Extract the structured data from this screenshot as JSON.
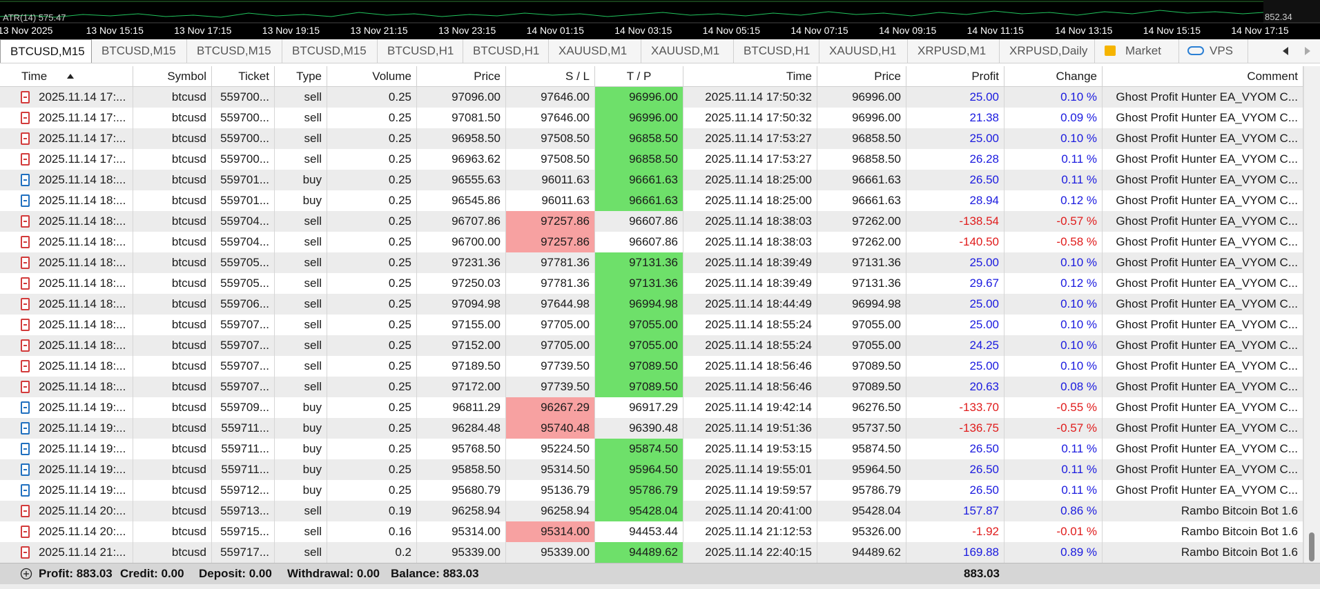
{
  "chart_strip": {
    "indicator": "ATR(14) 575.47",
    "right_value": "852.34",
    "time_labels": [
      "13 Nov 2025",
      "13 Nov 15:15",
      "13 Nov 17:15",
      "13 Nov 19:15",
      "13 Nov 21:15",
      "13 Nov 23:15",
      "14 Nov 01:15",
      "14 Nov 03:15",
      "14 Nov 05:15",
      "14 Nov 07:15",
      "14 Nov 09:15",
      "14 Nov 11:15",
      "14 Nov 13:15",
      "14 Nov 15:15",
      "14 Nov 17:15"
    ]
  },
  "tabs": [
    "BTCUSD,M15",
    "BTCUSD,M15",
    "BTCUSD,M15",
    "BTCUSD,M15",
    "BTCUSD,H1",
    "BTCUSD,H1",
    "XAUUSD,M1",
    "XAUUSD,M1",
    "BTCUSD,H1",
    "XAUUSD,H1",
    "XRPUSD,M1",
    "XRPUSD,Daily",
    "Market",
    "VPS"
  ],
  "table": {
    "columns": [
      "Time",
      "Symbol",
      "Ticket",
      "Type",
      "Volume",
      "Price",
      "S / L",
      "T / P",
      "Time",
      "Price",
      "Profit",
      "Change",
      "Comment"
    ],
    "rows": [
      [
        "2025.11.14 17:...",
        "btcusd",
        "559700...",
        "sell",
        "0.25",
        "97096.00",
        "97646.00",
        "96996.00",
        "2025.11.14 17:50:32",
        "96996.00",
        "25.00",
        "0.10 %",
        "Ghost Profit Hunter EA_VYOM C..."
      ],
      [
        "2025.11.14 17:...",
        "btcusd",
        "559700...",
        "sell",
        "0.25",
        "97081.50",
        "97646.00",
        "96996.00",
        "2025.11.14 17:50:32",
        "96996.00",
        "21.38",
        "0.09 %",
        "Ghost Profit Hunter EA_VYOM C..."
      ],
      [
        "2025.11.14 17:...",
        "btcusd",
        "559700...",
        "sell",
        "0.25",
        "96958.50",
        "97508.50",
        "96858.50",
        "2025.11.14 17:53:27",
        "96858.50",
        "25.00",
        "0.10 %",
        "Ghost Profit Hunter EA_VYOM C..."
      ],
      [
        "2025.11.14 17:...",
        "btcusd",
        "559700...",
        "sell",
        "0.25",
        "96963.62",
        "97508.50",
        "96858.50",
        "2025.11.14 17:53:27",
        "96858.50",
        "26.28",
        "0.11 %",
        "Ghost Profit Hunter EA_VYOM C..."
      ],
      [
        "2025.11.14 18:...",
        "btcusd",
        "559701...",
        "buy",
        "0.25",
        "96555.63",
        "96011.63",
        "96661.63",
        "2025.11.14 18:25:00",
        "96661.63",
        "26.50",
        "0.11 %",
        "Ghost Profit Hunter EA_VYOM C..."
      ],
      [
        "2025.11.14 18:...",
        "btcusd",
        "559701...",
        "buy",
        "0.25",
        "96545.86",
        "96011.63",
        "96661.63",
        "2025.11.14 18:25:00",
        "96661.63",
        "28.94",
        "0.12 %",
        "Ghost Profit Hunter EA_VYOM C..."
      ],
      [
        "2025.11.14 18:...",
        "btcusd",
        "559704...",
        "sell",
        "0.25",
        "96707.86",
        "97257.86",
        "96607.86",
        "2025.11.14 18:38:03",
        "97262.00",
        "-138.54",
        "-0.57 %",
        "Ghost Profit Hunter EA_VYOM C..."
      ],
      [
        "2025.11.14 18:...",
        "btcusd",
        "559704...",
        "sell",
        "0.25",
        "96700.00",
        "97257.86",
        "96607.86",
        "2025.11.14 18:38:03",
        "97262.00",
        "-140.50",
        "-0.58 %",
        "Ghost Profit Hunter EA_VYOM C..."
      ],
      [
        "2025.11.14 18:...",
        "btcusd",
        "559705...",
        "sell",
        "0.25",
        "97231.36",
        "97781.36",
        "97131.36",
        "2025.11.14 18:39:49",
        "97131.36",
        "25.00",
        "0.10 %",
        "Ghost Profit Hunter EA_VYOM C..."
      ],
      [
        "2025.11.14 18:...",
        "btcusd",
        "559705...",
        "sell",
        "0.25",
        "97250.03",
        "97781.36",
        "97131.36",
        "2025.11.14 18:39:49",
        "97131.36",
        "29.67",
        "0.12 %",
        "Ghost Profit Hunter EA_VYOM C..."
      ],
      [
        "2025.11.14 18:...",
        "btcusd",
        "559706...",
        "sell",
        "0.25",
        "97094.98",
        "97644.98",
        "96994.98",
        "2025.11.14 18:44:49",
        "96994.98",
        "25.00",
        "0.10 %",
        "Ghost Profit Hunter EA_VYOM C..."
      ],
      [
        "2025.11.14 18:...",
        "btcusd",
        "559707...",
        "sell",
        "0.25",
        "97155.00",
        "97705.00",
        "97055.00",
        "2025.11.14 18:55:24",
        "97055.00",
        "25.00",
        "0.10 %",
        "Ghost Profit Hunter EA_VYOM C..."
      ],
      [
        "2025.11.14 18:...",
        "btcusd",
        "559707...",
        "sell",
        "0.25",
        "97152.00",
        "97705.00",
        "97055.00",
        "2025.11.14 18:55:24",
        "97055.00",
        "24.25",
        "0.10 %",
        "Ghost Profit Hunter EA_VYOM C..."
      ],
      [
        "2025.11.14 18:...",
        "btcusd",
        "559707...",
        "sell",
        "0.25",
        "97189.50",
        "97739.50",
        "97089.50",
        "2025.11.14 18:56:46",
        "97089.50",
        "25.00",
        "0.10 %",
        "Ghost Profit Hunter EA_VYOM C..."
      ],
      [
        "2025.11.14 18:...",
        "btcusd",
        "559707...",
        "sell",
        "0.25",
        "97172.00",
        "97739.50",
        "97089.50",
        "2025.11.14 18:56:46",
        "97089.50",
        "20.63",
        "0.08 %",
        "Ghost Profit Hunter EA_VYOM C..."
      ],
      [
        "2025.11.14 19:...",
        "btcusd",
        "559709...",
        "buy",
        "0.25",
        "96811.29",
        "96267.29",
        "96917.29",
        "2025.11.14 19:42:14",
        "96276.50",
        "-133.70",
        "-0.55 %",
        "Ghost Profit Hunter EA_VYOM C..."
      ],
      [
        "2025.11.14 19:...",
        "btcusd",
        "559711...",
        "buy",
        "0.25",
        "96284.48",
        "95740.48",
        "96390.48",
        "2025.11.14 19:51:36",
        "95737.50",
        "-136.75",
        "-0.57 %",
        "Ghost Profit Hunter EA_VYOM C..."
      ],
      [
        "2025.11.14 19:...",
        "btcusd",
        "559711...",
        "buy",
        "0.25",
        "95768.50",
        "95224.50",
        "95874.50",
        "2025.11.14 19:53:15",
        "95874.50",
        "26.50",
        "0.11 %",
        "Ghost Profit Hunter EA_VYOM C..."
      ],
      [
        "2025.11.14 19:...",
        "btcusd",
        "559711...",
        "buy",
        "0.25",
        "95858.50",
        "95314.50",
        "95964.50",
        "2025.11.14 19:55:01",
        "95964.50",
        "26.50",
        "0.11 %",
        "Ghost Profit Hunter EA_VYOM C..."
      ],
      [
        "2025.11.14 19:...",
        "btcusd",
        "559712...",
        "buy",
        "0.25",
        "95680.79",
        "95136.79",
        "95786.79",
        "2025.11.14 19:59:57",
        "95786.79",
        "26.50",
        "0.11 %",
        "Ghost Profit Hunter EA_VYOM C..."
      ],
      [
        "2025.11.14 20:...",
        "btcusd",
        "559713...",
        "sell",
        "0.19",
        "96258.94",
        "96258.94",
        "95428.04",
        "2025.11.14 20:41:00",
        "95428.04",
        "157.87",
        "0.86 %",
        "Rambo Bitcoin Bot 1.6"
      ],
      [
        "2025.11.14 20:...",
        "btcusd",
        "559715...",
        "sell",
        "0.16",
        "95314.00",
        "95314.00",
        "94453.44",
        "2025.11.14 21:12:53",
        "95326.00",
        "-1.92",
        "-0.01 %",
        "Rambo Bitcoin Bot 1.6"
      ],
      [
        "2025.11.14 21:...",
        "btcusd",
        "559717...",
        "sell",
        "0.2",
        "95339.00",
        "95339.00",
        "94489.62",
        "2025.11.14 22:40:15",
        "94489.62",
        "169.88",
        "0.89 %",
        "Rambo Bitcoin Bot 1.6"
      ]
    ],
    "hit": [
      "tp",
      "tp",
      "tp",
      "tp",
      "tp",
      "tp",
      "sl",
      "sl",
      "tp",
      "tp",
      "tp",
      "tp",
      "tp",
      "tp",
      "tp",
      "sl",
      "sl",
      "tp",
      "tp",
      "tp",
      "tp",
      "sl",
      "tp"
    ]
  },
  "footer": {
    "summary": [
      "Profit: 883.03",
      "Credit: 0.00",
      "Deposit: 0.00",
      "Withdrawal: 0.00",
      "Balance: 883.03"
    ],
    "profit_total": "883.03"
  }
}
